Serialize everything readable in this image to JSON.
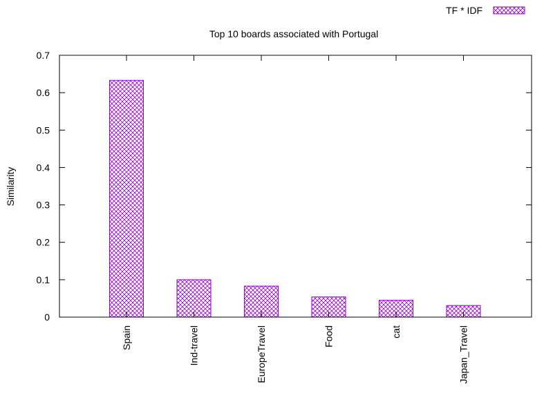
{
  "chart_data": {
    "type": "bar",
    "title": "Top 10 boards associated with Portugal",
    "xlabel": "",
    "ylabel": "Similarity",
    "ylim": [
      0,
      0.7
    ],
    "yticks": [
      "0",
      "0.1",
      "0.2",
      "0.3",
      "0.4",
      "0.5",
      "0.6",
      "0.7"
    ],
    "categories": [
      "Spain",
      "Ind-travel",
      "EuropeTravel",
      "Food",
      "cat",
      "Japan_Travel"
    ],
    "series": [
      {
        "name": "TF * IDF",
        "values": [
          0.633,
          0.1,
          0.083,
          0.054,
          0.045,
          0.031
        ],
        "color": "#9400d3"
      }
    ],
    "legend": {
      "position": "top-right",
      "pattern": "crosshatch"
    },
    "grid": false
  }
}
